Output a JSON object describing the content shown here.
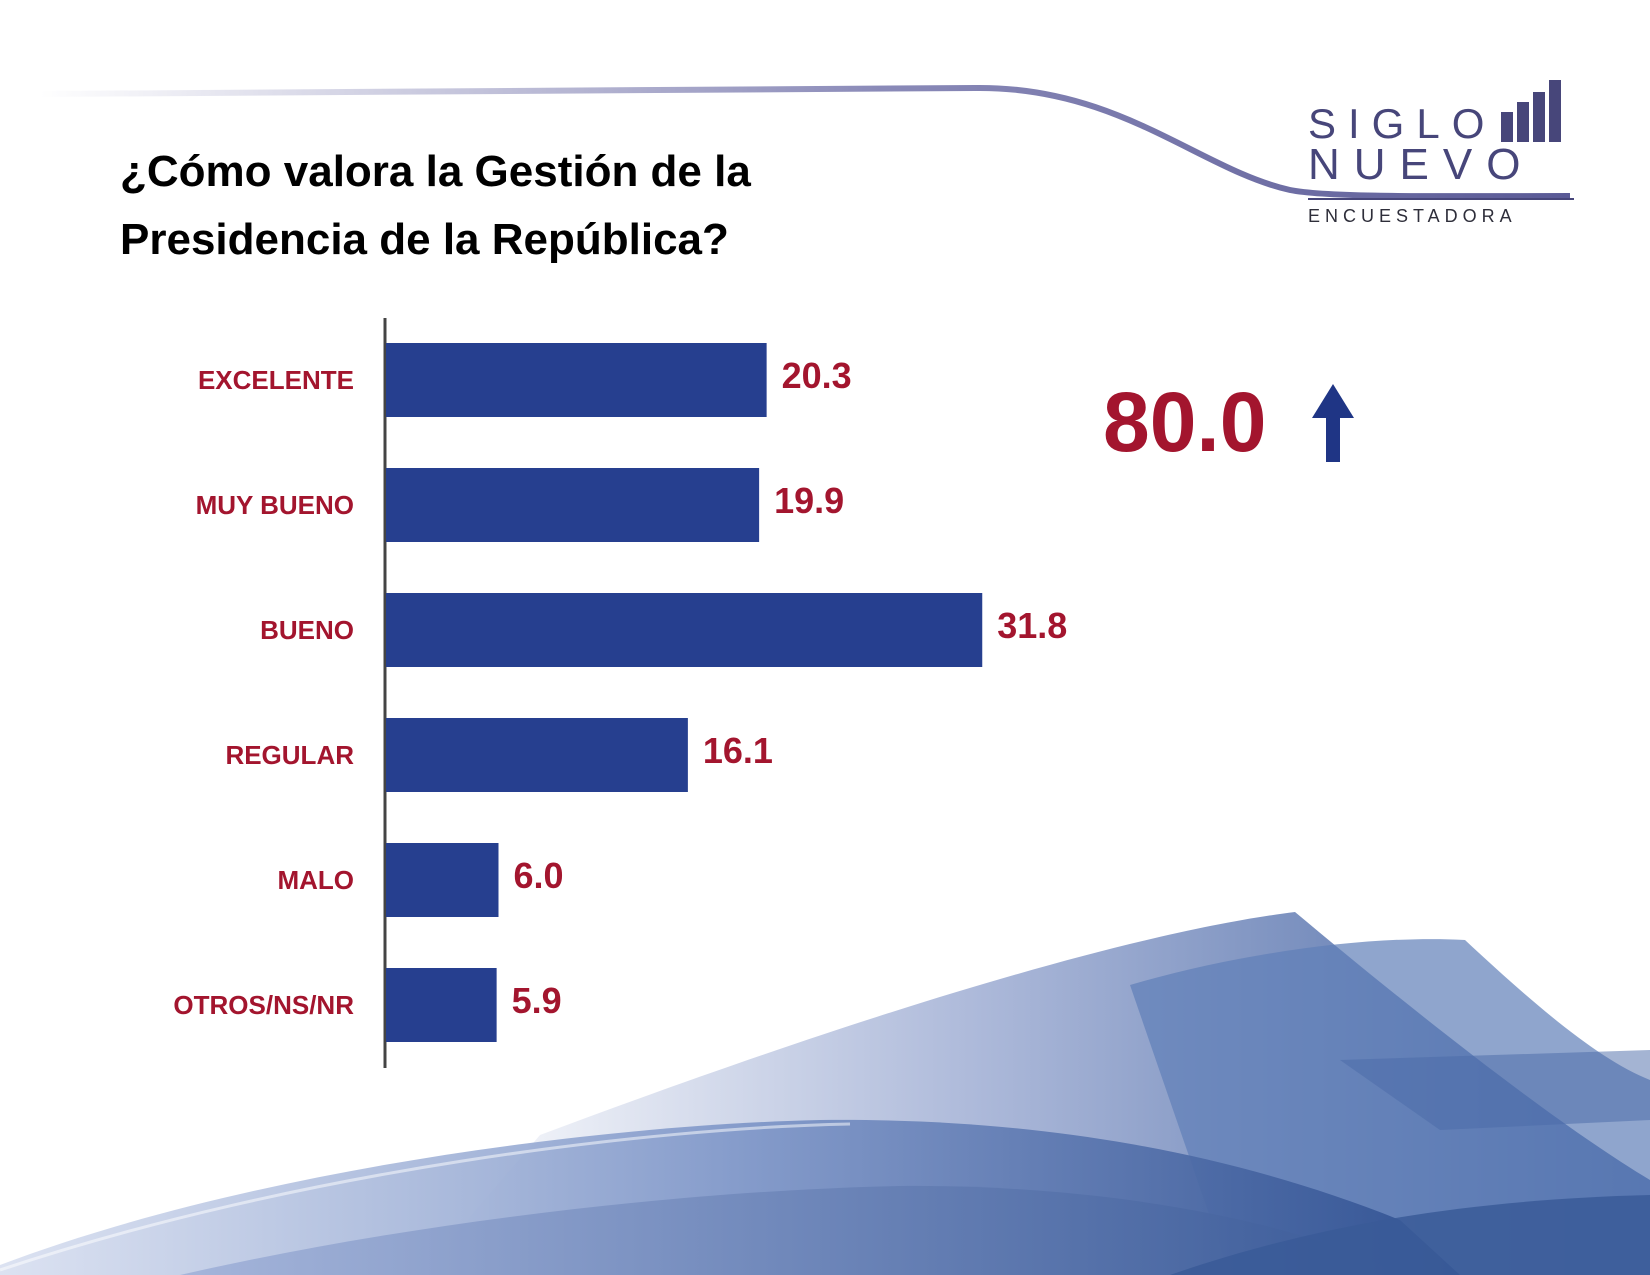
{
  "title": {
    "line1": "¿Cómo valora la Gestión de la",
    "line2": "Presidencia de la República?"
  },
  "logo": {
    "word1": "SIGLO",
    "word2": "NUEVO",
    "word3": "ENCUESTADORA",
    "color": "#47467a"
  },
  "total": {
    "value": "80.0",
    "icon": "up-arrow-icon",
    "color": "#a3152e",
    "icon_color": "#1f3585"
  },
  "colors": {
    "bar": "#263f8f",
    "label": "#a3152e",
    "axis": "#444444"
  },
  "chart_data": {
    "type": "bar",
    "orientation": "horizontal",
    "categories": [
      "EXCELENTE",
      "MUY BUENO",
      "BUENO",
      "REGULAR",
      "MALO",
      "OTROS/NS/NR"
    ],
    "values": [
      20.3,
      19.9,
      31.8,
      16.1,
      6.0,
      5.9
    ],
    "value_labels": [
      "20.3",
      "19.9",
      "31.8",
      "16.1",
      "6.0",
      "5.9"
    ],
    "xlim": [
      0,
      35
    ],
    "grid": false,
    "legend": "none"
  }
}
